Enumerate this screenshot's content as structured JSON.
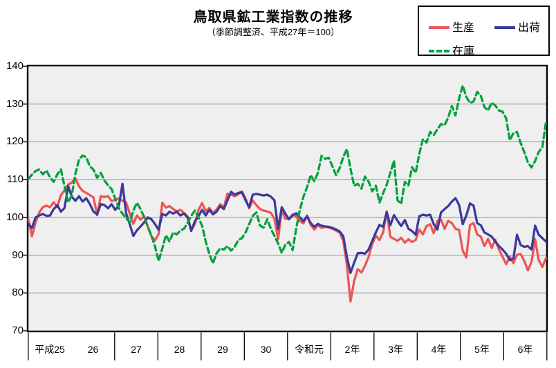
{
  "title": "鳥取県鉱工業指数の推移",
  "subtitle": "（季節調整済、平成27年＝100）",
  "legend": {
    "items": [
      {
        "label": "生産",
        "color": "#ee5555",
        "style": "solid"
      },
      {
        "label": "出荷",
        "color": "#3a3a9c",
        "style": "solid"
      },
      {
        "label": "在庫",
        "color": "#00a23e",
        "style": "dashed"
      }
    ]
  },
  "chart_data": {
    "type": "line",
    "title": "鳥取県鉱工業指数の推移",
    "subtitle": "（季節調整済、平成27年＝100）",
    "x_unit": "month",
    "x_start": "平成25年1月",
    "x_end": "令和6年12月",
    "year_labels": [
      "平成25",
      "26",
      "27",
      "28",
      "29",
      "30",
      "令和元",
      "2年",
      "3年",
      "4年",
      "5年",
      "6年"
    ],
    "y_ticks": [
      140,
      130,
      120,
      110,
      100,
      90,
      80,
      70
    ],
    "ylim": [
      70,
      140
    ],
    "grid": true,
    "plot_bg": "#efefef",
    "grid_color": "#8f8f8f",
    "legend_position": "top-right",
    "series": [
      {
        "name": "生産",
        "color": "#ee5555",
        "dash": null,
        "values": [
          99.4,
          95.0,
          98.7,
          101.3,
          102.7,
          103.1,
          102.7,
          104.0,
          102.8,
          105.9,
          107.2,
          108.7,
          109.2,
          110.3,
          108.2,
          107.0,
          106.5,
          105.9,
          105.3,
          100.6,
          105.6,
          105.4,
          105.6,
          104.3,
          104.7,
          105.0,
          104.4,
          104.0,
          101.0,
          98.3,
          100.5,
          99.4,
          100.3,
          97.5,
          95.0,
          93.9,
          95.6,
          103.9,
          102.6,
          103.0,
          102.2,
          101.6,
          102.0,
          101.2,
          100.2,
          96.6,
          98.2,
          102.0,
          103.8,
          101.6,
          102.5,
          101.2,
          102.1,
          103.5,
          102.6,
          106.3,
          106.0,
          105.6,
          106.1,
          106.9,
          105.0,
          102.4,
          104.5,
          103.2,
          102.2,
          101.8,
          101.6,
          101.2,
          99.6,
          94.2,
          102.0,
          99.6,
          99.6,
          100.8,
          100.2,
          99.0,
          98.4,
          100.5,
          98.0,
          96.8,
          97.9,
          97.2,
          97.5,
          97.3,
          97.0,
          96.5,
          96.0,
          93.8,
          87.4,
          77.7,
          83.2,
          86.3,
          85.4,
          87.2,
          89.5,
          93.0,
          95.2,
          94.0,
          96.0,
          101.6,
          94.9,
          94.3,
          93.8,
          94.6,
          93.3,
          94.2,
          93.5,
          94.0,
          96.8,
          95.5,
          97.7,
          98.2,
          95.8,
          99.1,
          99.4,
          97.0,
          99.1,
          98.5,
          97.0,
          96.7,
          91.2,
          89.4,
          98.0,
          98.5,
          95.5,
          94.9,
          92.4,
          94.3,
          91.9,
          94.1,
          91.5,
          89.6,
          87.6,
          89.6,
          87.9,
          90.1,
          90.3,
          88.5,
          86.0,
          88.2,
          94.2,
          88.7,
          86.9,
          89.2
        ]
      },
      {
        "name": "出荷",
        "color": "#3a3a9c",
        "dash": null,
        "values": [
          98.3,
          97.2,
          100.0,
          100.5,
          100.9,
          100.4,
          100.5,
          102.2,
          103.2,
          101.5,
          102.5,
          108.3,
          105.5,
          104.4,
          105.6,
          104.2,
          105.1,
          103.5,
          101.5,
          100.8,
          103.5,
          103.3,
          102.4,
          103.5,
          102.0,
          103.1,
          108.9,
          101.1,
          98.2,
          95.1,
          96.6,
          97.6,
          98.7,
          100.0,
          99.5,
          98.2,
          96.7,
          100.9,
          100.5,
          101.5,
          101.0,
          101.5,
          100.5,
          101.0,
          100.0,
          96.4,
          99.0,
          100.3,
          102.0,
          100.5,
          102.0,
          100.8,
          101.5,
          103.0,
          102.2,
          104.5,
          106.8,
          106.0,
          106.5,
          106.6,
          104.5,
          102.7,
          106.0,
          106.2,
          106.0,
          105.8,
          106.0,
          105.5,
          104.5,
          96.9,
          102.7,
          101.0,
          99.5,
          100.5,
          101.1,
          100.0,
          99.0,
          100.3,
          98.5,
          97.5,
          98.3,
          97.8,
          97.6,
          97.5,
          97.2,
          96.8,
          96.3,
          95.0,
          89.6,
          85.3,
          88.0,
          90.5,
          90.6,
          90.4,
          91.5,
          93.8,
          96.0,
          98.0,
          97.5,
          101.4,
          97.9,
          100.6,
          99.1,
          97.7,
          99.3,
          97.0,
          96.4,
          95.4,
          100.3,
          100.7,
          100.5,
          100.7,
          98.2,
          96.8,
          101.3,
          102.2,
          103.0,
          104.2,
          105.1,
          103.3,
          98.2,
          100.5,
          103.7,
          103.1,
          98.5,
          97.9,
          96.0,
          95.5,
          94.9,
          93.6,
          92.4,
          91.5,
          90.4,
          88.7,
          89.1,
          95.4,
          92.7,
          92.2,
          92.4,
          91.5,
          97.8,
          95.4,
          94.5,
          93.6
        ]
      },
      {
        "name": "在庫",
        "color": "#00a23e",
        "dash": [
          8,
          5
        ],
        "values": [
          110.2,
          111.3,
          112.3,
          112.7,
          111.4,
          112.4,
          110.6,
          109.4,
          111.4,
          112.7,
          108.2,
          104.0,
          105.8,
          111.5,
          115.3,
          116.4,
          115.9,
          113.5,
          112.6,
          110.5,
          111.8,
          109.8,
          108.5,
          107.5,
          105.0,
          102.4,
          101.0,
          99.8,
          98.7,
          101.8,
          103.9,
          102.2,
          100.0,
          97.6,
          95.1,
          92.3,
          88.4,
          91.8,
          95.3,
          93.6,
          96.0,
          95.5,
          96.5,
          97.0,
          98.5,
          100.4,
          101.8,
          100.0,
          97.8,
          93.6,
          90.3,
          87.8,
          90.5,
          91.8,
          91.5,
          92.4,
          91.2,
          92.2,
          94.0,
          94.5,
          96.0,
          98.2,
          100.4,
          101.3,
          97.8,
          97.3,
          99.5,
          97.0,
          95.1,
          93.1,
          90.6,
          92.8,
          93.5,
          91.3,
          97.0,
          102.0,
          105.5,
          108.0,
          111.2,
          109.6,
          111.8,
          116.3,
          115.5,
          115.8,
          113.5,
          111.2,
          113.0,
          116.0,
          118.1,
          112.9,
          108.4,
          108.9,
          107.6,
          110.8,
          109.5,
          106.9,
          108.4,
          103.9,
          106.4,
          108.7,
          111.8,
          115.0,
          104.5,
          103.6,
          109.4,
          108.4,
          113.3,
          111.8,
          116.8,
          120.7,
          119.8,
          122.6,
          121.8,
          123.3,
          124.7,
          124.4,
          126.5,
          129.5,
          127.0,
          131.5,
          134.9,
          131.9,
          130.3,
          130.7,
          133.2,
          132.2,
          129.2,
          128.3,
          130.4,
          129.6,
          128.3,
          128.0,
          126.2,
          120.4,
          122.3,
          122.6,
          119.7,
          117.3,
          114.6,
          113.2,
          114.9,
          117.3,
          118.6,
          125.3
        ]
      }
    ]
  }
}
